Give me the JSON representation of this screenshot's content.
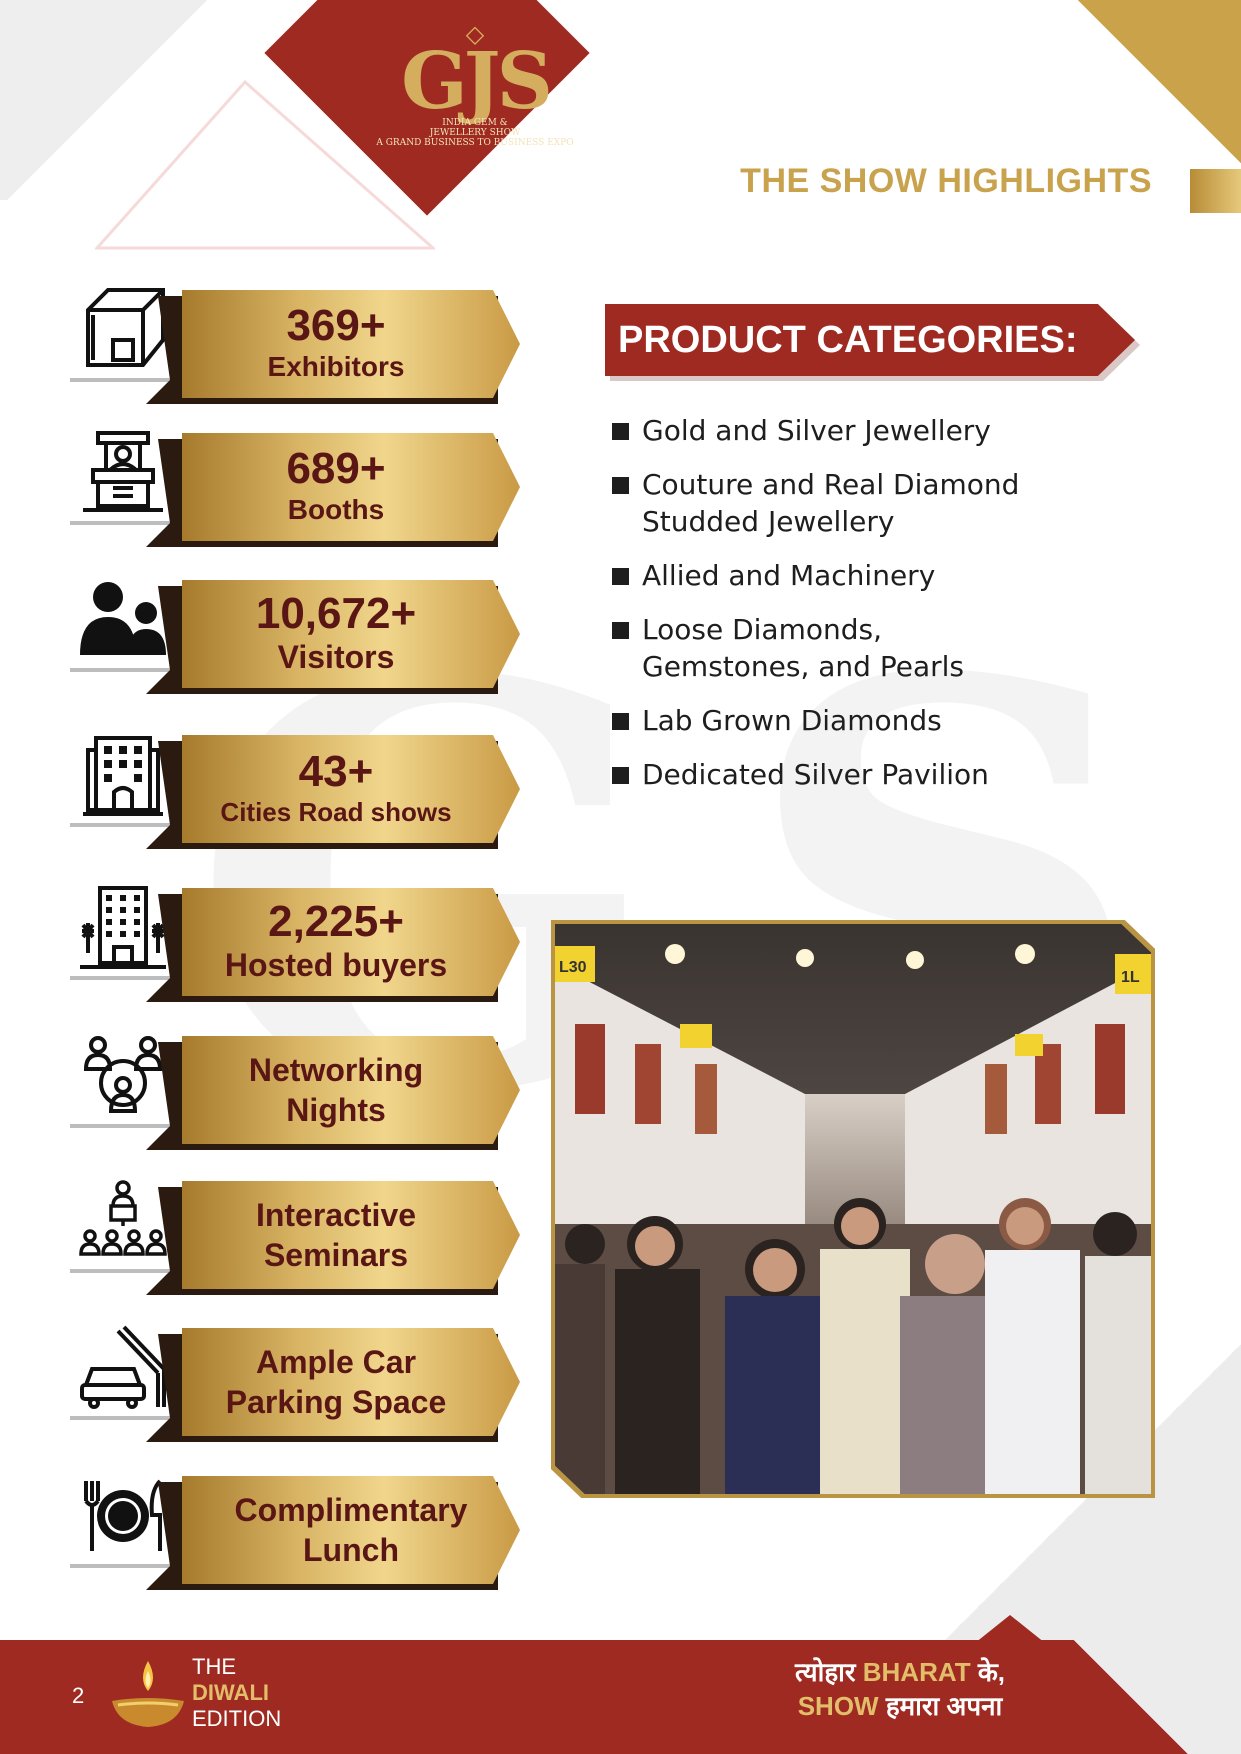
{
  "header": {
    "logo_mark": "GJS",
    "logo_line1": "INDIA GEM &",
    "logo_line2": "JEWELLERY SHOW",
    "logo_line3": "A GRAND BUSINESS TO BUSINESS EXPO",
    "section_title": "THE SHOW HIGHLIGHTS"
  },
  "highlights": [
    {
      "icon": "booth-icon",
      "value": "369+",
      "label": "Exhibitors"
    },
    {
      "icon": "counter-icon",
      "value": "689+",
      "label": "Booths"
    },
    {
      "icon": "people-icon",
      "value": "10,672+",
      "label": "Visitors"
    },
    {
      "icon": "building-icon",
      "value": "43+",
      "label": "Cities Road shows"
    },
    {
      "icon": "hotel-icon",
      "value": "2,225+",
      "label": "Hosted buyers"
    },
    {
      "icon": "network-icon",
      "line1": "Networking",
      "line2": "Nights"
    },
    {
      "icon": "seminar-icon",
      "line1": "Interactive",
      "line2": "Seminars"
    },
    {
      "icon": "parking-icon",
      "line1": "Ample Car",
      "line2": "Parking Space"
    },
    {
      "icon": "lunch-icon",
      "line1": "Complimentary",
      "line2": "Lunch"
    }
  ],
  "product_categories": {
    "title": "PRODUCT CATEGORIES:",
    "items": [
      {
        "line1": "Gold and Silver Jewellery",
        "line2": ""
      },
      {
        "line1": "Couture and Real Diamond",
        "line2": "Studded Jewellery"
      },
      {
        "line1": "Allied and Machinery",
        "line2": ""
      },
      {
        "line1": "Loose Diamonds,",
        "line2": "Gemstones, and Pearls"
      },
      {
        "line1": "Lab Grown Diamonds",
        "line2": ""
      },
      {
        "line1": "Dedicated Silver Pavilion",
        "line2": ""
      }
    ]
  },
  "photo": {
    "sign_left": "L30",
    "sign_right": "1L"
  },
  "footer": {
    "page_number": "2",
    "edition_line1": "THE",
    "edition_line2": "DIWALI",
    "edition_line3": "EDITION",
    "tagline_part1": "त्योहार ",
    "tagline_part2": "BHARAT",
    "tagline_part3": " के,",
    "tagline_part4": "SHOW",
    "tagline_part5": " हमारा अपना"
  },
  "colors": {
    "maroon": "#9f2a22",
    "gold": "#c8a24c",
    "text_dark": "#5a1614"
  }
}
